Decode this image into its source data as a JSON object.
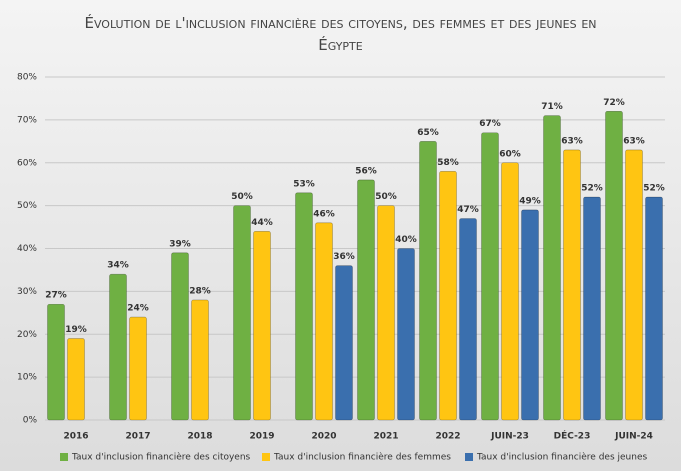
{
  "chart_data": {
    "type": "bar",
    "title": "Évolution de l'inclusion financière des citoyens, des femmes et des jeunes en Égypte",
    "categories": [
      "2016",
      "2017",
      "2018",
      "2019",
      "2020",
      "2021",
      "2022",
      "JUIN-23",
      "DÉC-23",
      "JUIN-24"
    ],
    "series": [
      {
        "name": "Taux d'inclusion financière des citoyens",
        "color": "#6fb043",
        "values": [
          27,
          34,
          39,
          50,
          53,
          56,
          65,
          67,
          71,
          72
        ],
        "value_labels": [
          "27%",
          "34%",
          "39%",
          "50%",
          "53%",
          "56%",
          "65%",
          "67%",
          "71%",
          "72%"
        ]
      },
      {
        "name": "Taux d'inclusion financière des femmes",
        "color": "#ffc512",
        "values": [
          19,
          24,
          28,
          44,
          46,
          50,
          58,
          60,
          63,
          63
        ],
        "value_labels": [
          "19%",
          "24%",
          "28%",
          "44%",
          "46%",
          "50%",
          "58%",
          "60%",
          "63%",
          "63%"
        ]
      },
      {
        "name": "Taux d'inclusion financière des jeunes",
        "color": "#3a6fae",
        "values": [
          null,
          null,
          null,
          null,
          36,
          40,
          47,
          49,
          52,
          52
        ],
        "value_labels": [
          null,
          null,
          null,
          null,
          "36%",
          "40%",
          "47%",
          "49%",
          "52%",
          "52%"
        ]
      }
    ],
    "ylim": [
      0,
      80
    ],
    "yticks": [
      {
        "value": 0,
        "label": "0%"
      },
      {
        "value": 10,
        "label": "10%"
      },
      {
        "value": 20,
        "label": "20%"
      },
      {
        "value": 30,
        "label": "30%"
      },
      {
        "value": 40,
        "label": "40%"
      },
      {
        "value": 50,
        "label": "50%"
      },
      {
        "value": 60,
        "label": "60%"
      },
      {
        "value": 70,
        "label": "70%"
      },
      {
        "value": 80,
        "label": "80%"
      }
    ],
    "grid": true,
    "legend": "bottom"
  }
}
